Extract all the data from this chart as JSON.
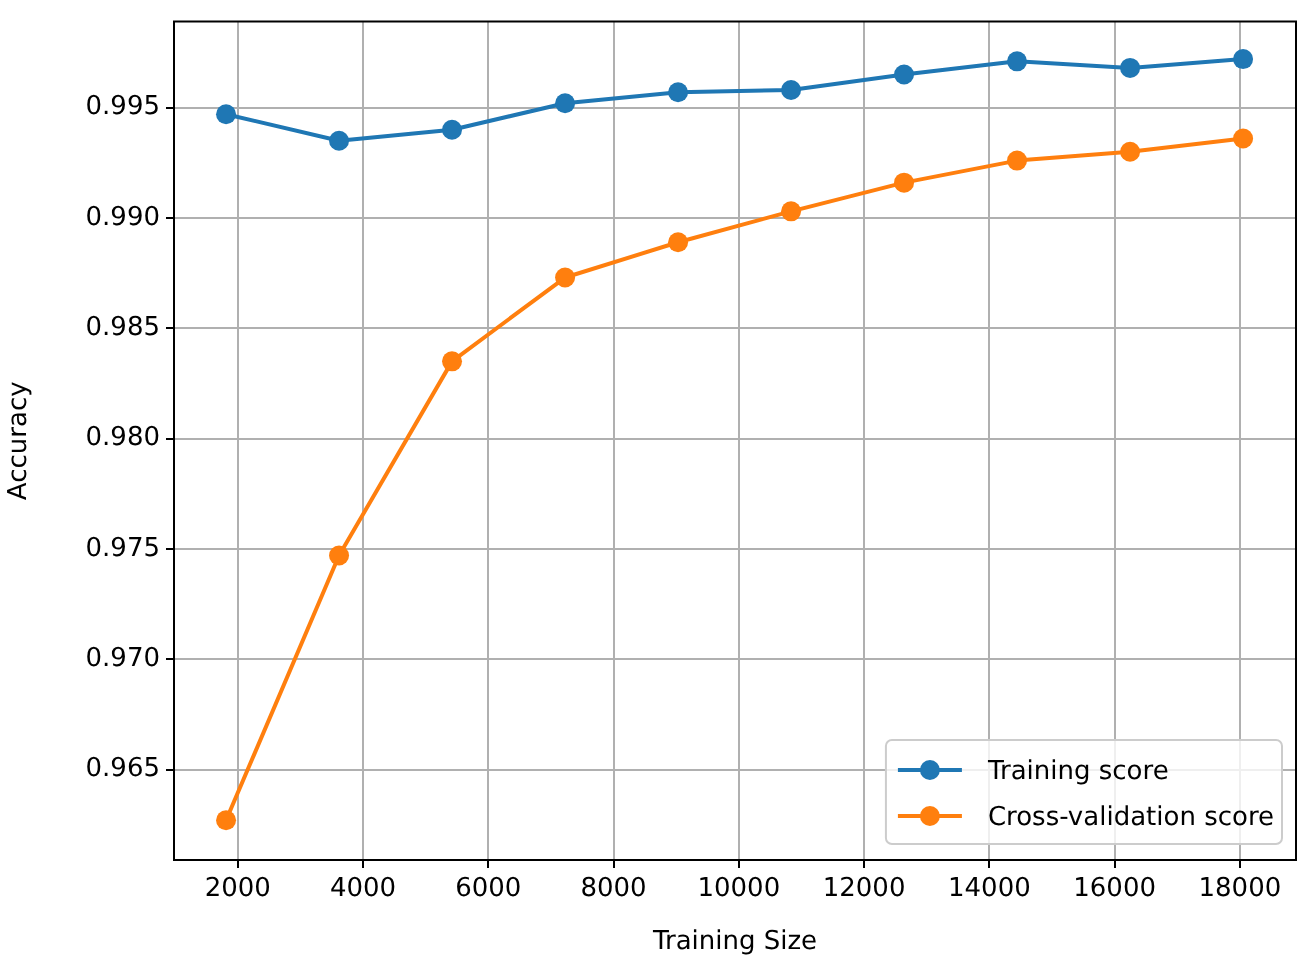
{
  "chart_data": {
    "type": "line",
    "xlabel": "Training Size",
    "ylabel": "Accuracy",
    "xlim": [
      982,
      18896
    ],
    "xticks": [
      2000,
      4000,
      6000,
      8000,
      10000,
      12000,
      14000,
      16000,
      18000
    ],
    "ylim": [
      0.9609,
      0.9989
    ],
    "yticks": [
      {
        "value": 0.965,
        "label": "0.965"
      },
      {
        "value": 0.97,
        "label": "0.970"
      },
      {
        "value": 0.975,
        "label": "0.975"
      },
      {
        "value": 0.98,
        "label": "0.980"
      },
      {
        "value": 0.985,
        "label": "0.985"
      },
      {
        "value": 0.99,
        "label": "0.990"
      },
      {
        "value": 0.995,
        "label": "0.995"
      }
    ],
    "x": [
      1813,
      3617,
      5421,
      7226,
      9030,
      10834,
      12638,
      14442,
      16247,
      18051
    ],
    "series": [
      {
        "name": "Training score",
        "color": "#1f77b4",
        "values": [
          0.9947,
          0.9935,
          0.994,
          0.9952,
          0.9957,
          0.9958,
          0.9965,
          0.9971,
          0.9968,
          0.9972
        ]
      },
      {
        "name": "Cross-validation score",
        "color": "#ff7f0e",
        "values": [
          0.9627,
          0.9747,
          0.9835,
          0.9873,
          0.9889,
          0.9903,
          0.9916,
          0.9926,
          0.993,
          0.9936
        ]
      }
    ],
    "grid": true,
    "legend": "bottom right",
    "marker": "circle",
    "line_style": "solid"
  }
}
